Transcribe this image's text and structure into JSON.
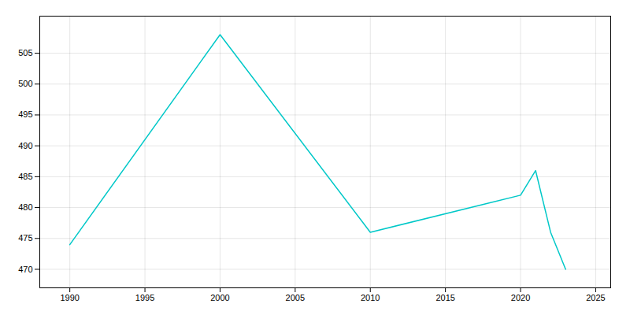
{
  "chart_data": {
    "type": "line",
    "x": [
      1990,
      2000,
      2010,
      2020,
      2021,
      2022,
      2023
    ],
    "values": [
      474,
      508,
      476,
      482,
      486,
      476,
      470
    ],
    "color": "#00c8c8",
    "xlim": [
      1988,
      2026
    ],
    "ylim": [
      467,
      511
    ],
    "xticks": [
      1990,
      1995,
      2000,
      2005,
      2010,
      2015,
      2020,
      2025
    ],
    "yticks": [
      470,
      475,
      480,
      485,
      490,
      495,
      500,
      505
    ],
    "grid": true
  }
}
